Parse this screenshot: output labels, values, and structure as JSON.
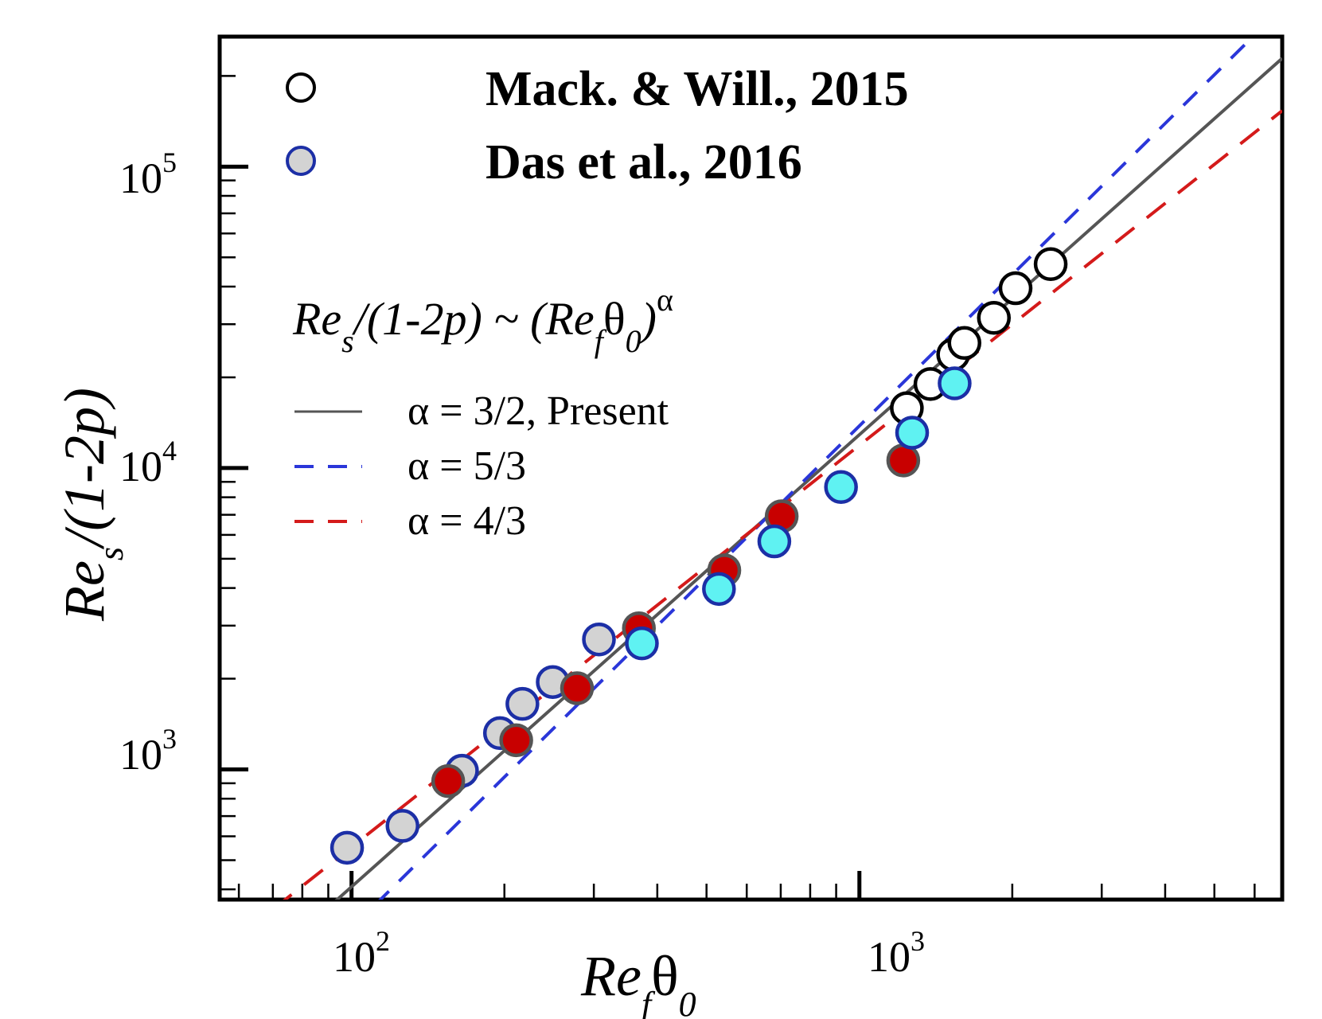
{
  "chart_data": {
    "type": "scatter",
    "xscale": "log",
    "yscale": "log",
    "xlim": [
      55,
      6800
    ],
    "ylim": [
      370,
      270000
    ],
    "grid": false,
    "x_ticks": [
      {
        "base": "10",
        "exp": "2",
        "value": 100
      },
      {
        "base": "10",
        "exp": "3",
        "value": 1000
      }
    ],
    "y_ticks": [
      {
        "base": "10",
        "exp": "3",
        "value": 1000
      },
      {
        "base": "10",
        "exp": "4",
        "value": 10000
      },
      {
        "base": "10",
        "exp": "5",
        "value": 100000
      }
    ],
    "xlabel": {
      "main": "Re",
      "sub": "f",
      "rest": "θ",
      "rest_sub": "0"
    },
    "ylabel": {
      "main": "Re",
      "sub": "s",
      "rest": "/(1-2p)"
    },
    "formula": {
      "a": "Re",
      "a_sub": "s",
      "b": "/(1-2p) ~ (Re",
      "c_sub": "f",
      "d": "θ",
      "d_sub": "0",
      "e": ")",
      "sup": "α"
    },
    "legend": {
      "placement": "top-left",
      "markers": [
        {
          "label": "Mack. & Will., 2015",
          "fill": "#ffffff",
          "stroke": "#000000"
        },
        {
          "label": "Das et al., 2016",
          "fill": "#d3d3d3",
          "stroke": "#1c2fa6"
        }
      ],
      "lines": [
        {
          "label": "α = 3/2, Present",
          "color": "#555555",
          "dash": "solid"
        },
        {
          "label": "α = 5/3",
          "color": "#2a36d9",
          "dash": "dashed"
        },
        {
          "label": "α = 4/3",
          "color": "#d41a1a",
          "dash": "dashed"
        }
      ]
    },
    "fit_lines": [
      {
        "label": "α = 3/2, Present",
        "alpha": 1.5,
        "x_range": [
          87,
          6800
        ],
        "color": "#555555",
        "dash": "solid",
        "anchor": {
          "x": 1000,
          "y": 12900
        }
      },
      {
        "label": "α = 5/3",
        "alpha": 1.6667,
        "x_range": [
          100,
          6800
        ],
        "color": "#2a36d9",
        "dash": "dashed",
        "anchor": {
          "x": 1000,
          "y": 13800
        }
      },
      {
        "label": "α = 4/3",
        "alpha": 1.3333,
        "x_range": [
          70,
          6800
        ],
        "color": "#d41a1a",
        "dash": "dashed",
        "anchor": {
          "x": 1000,
          "y": 11900
        }
      }
    ],
    "series": [
      {
        "name": "Mack. & Will., 2015",
        "fill": "#ffffff",
        "stroke": "#000000",
        "points": [
          [
            1240,
            15800
          ],
          [
            1380,
            19000
          ],
          [
            1530,
            23800
          ],
          [
            1610,
            26000
          ],
          [
            1840,
            31500
          ],
          [
            2030,
            39500
          ],
          [
            2380,
            47500
          ]
        ]
      },
      {
        "name": "Das et al., 2016",
        "fill": "#d3d3d3",
        "stroke": "#1c2fa6",
        "points": [
          [
            98,
            550
          ],
          [
            126,
            650
          ],
          [
            165,
            990
          ],
          [
            196,
            1320
          ],
          [
            217,
            1650
          ],
          [
            249,
            1950
          ],
          [
            307,
            2700
          ]
        ]
      },
      {
        "fill": "#c80000",
        "stroke": "#555555",
        "points": [
          [
            155,
            915
          ],
          [
            211,
            1250
          ],
          [
            278,
            1860
          ],
          [
            368,
            2940
          ],
          [
            542,
            4580
          ],
          [
            703,
            6920
          ],
          [
            1220,
            10600
          ]
        ]
      },
      {
        "fill": "#5ff2f2",
        "stroke": "#1c2fa6",
        "points": [
          [
            373,
            2620
          ],
          [
            529,
            3970
          ],
          [
            680,
            5710
          ],
          [
            920,
            8650
          ],
          [
            1270,
            13100
          ],
          [
            1540,
            19100
          ]
        ]
      }
    ]
  }
}
